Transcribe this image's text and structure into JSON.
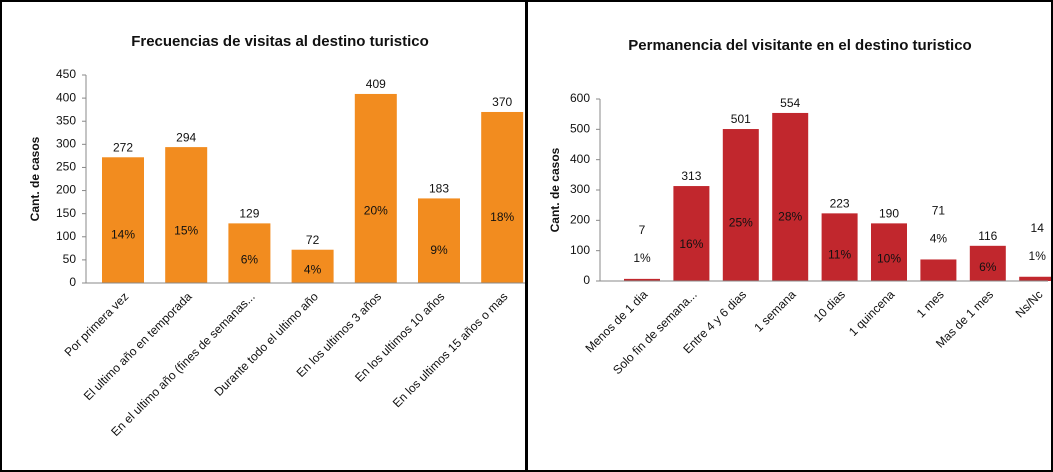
{
  "chart_data": [
    {
      "type": "bar",
      "title": "Frecuencias de visitas al destino turistico",
      "y_label": "Cant. de casos",
      "categories": [
        "Por primera vez",
        "El ultimo año en temporada",
        "En el ultimo año (fines de semanas...",
        "Durante todo el ultimo año",
        "En los ultimos 3 años",
        "En los ultimos 10 años",
        "En los ultimos 15 años o mas"
      ],
      "values": [
        272,
        294,
        129,
        72,
        409,
        183,
        370
      ],
      "percent_labels": [
        "14%",
        "15%",
        "6%",
        "4%",
        "20%",
        "9%",
        "18%"
      ],
      "color": "#f28c1f",
      "ylim": [
        0,
        450
      ],
      "yticks": [
        0,
        50,
        100,
        150,
        200,
        250,
        300,
        350,
        400,
        450
      ]
    },
    {
      "type": "bar",
      "title": "Permanencia del visitante en el destino turistico",
      "y_label": "Cant. de casos",
      "categories": [
        "Menos de 1 dia",
        "Solo fin de semana...",
        "Entre 4 y 6 dias",
        "1 semana",
        "10 dias",
        "1 quincena",
        "1 mes",
        "Mas de 1 mes",
        "Ns/Nc"
      ],
      "values": [
        7,
        313,
        501,
        554,
        223,
        190,
        71,
        116,
        14
      ],
      "percent_labels": [
        "1%",
        "16%",
        "25%",
        "28%",
        "11%",
        "10%",
        "4%",
        "6%",
        "1%"
      ],
      "color": "#c1272d",
      "ylim": [
        0,
        600
      ],
      "yticks": [
        0,
        100,
        200,
        300,
        400,
        500,
        600
      ]
    }
  ]
}
